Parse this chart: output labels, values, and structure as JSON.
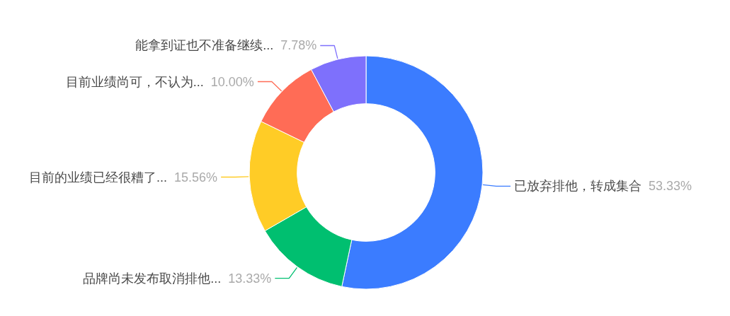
{
  "chart_data": {
    "type": "donut",
    "categories": [
      "已放弃排他，转成集合",
      "品牌尚未发布取消排他...",
      "目前的业绩已经很糟了...",
      "目前业绩尚可，不认为...",
      "能拿到证也不准备继续..."
    ],
    "values": [
      53.33,
      13.33,
      15.56,
      10.0,
      7.78
    ],
    "colors": [
      "#3b7cff",
      "#00bf70",
      "#ffcc26",
      "#ff6c56",
      "#7e70fc"
    ],
    "value_labels": [
      "53.33%",
      "13.33%",
      "15.56%",
      "10.00%",
      "7.78%"
    ]
  }
}
